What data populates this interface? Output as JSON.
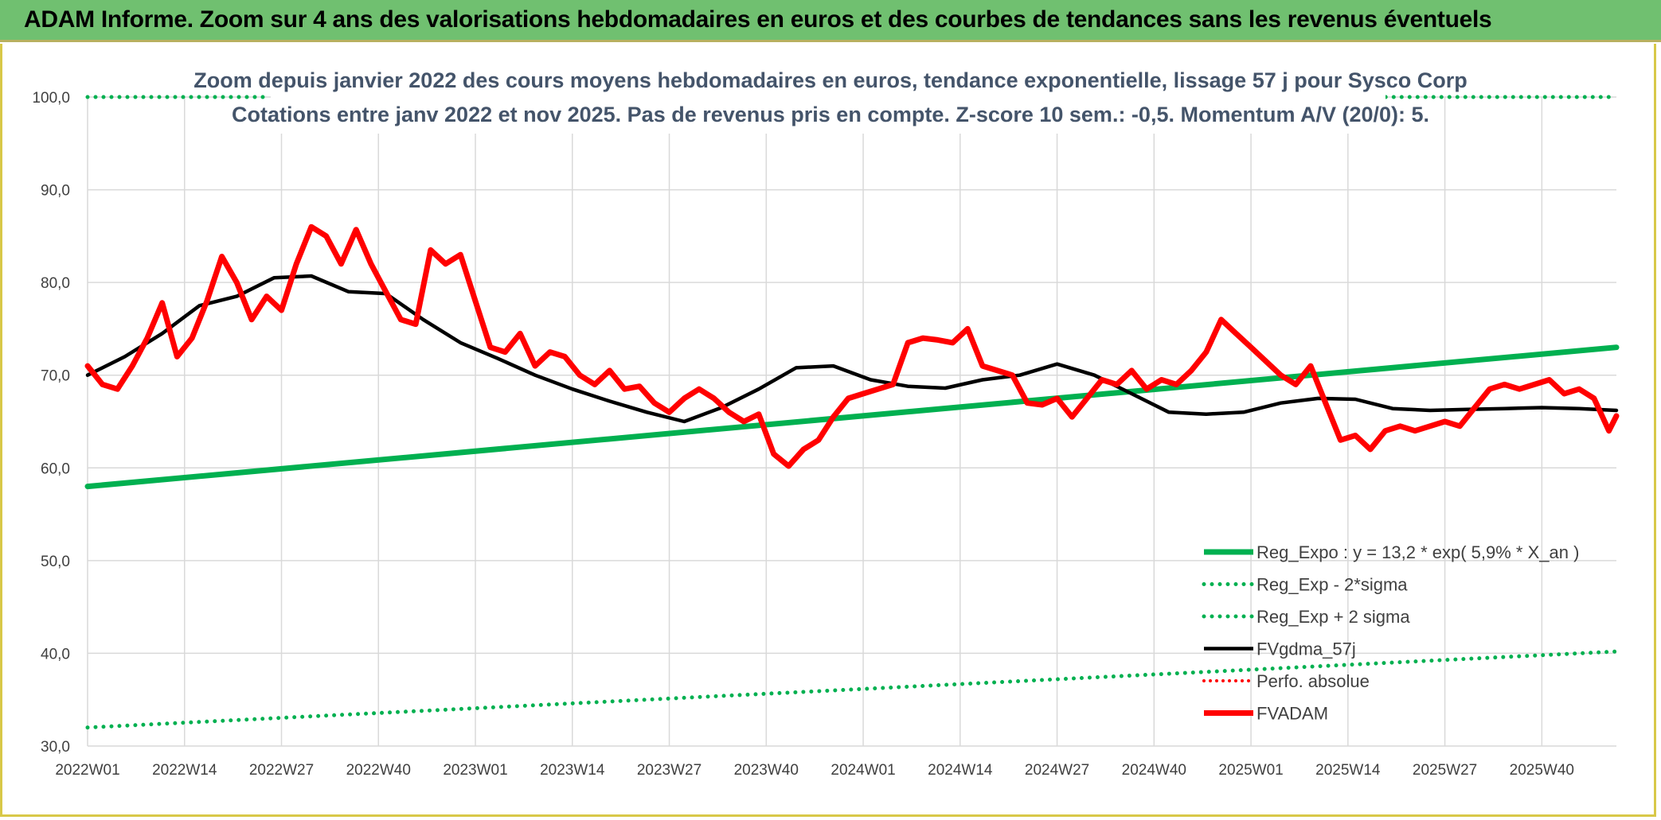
{
  "banner": {
    "title": "ADAM Informe. Zoom sur 4 ans des valorisations hebdomadaires en euros et des courbes de tendances sans les revenus éventuels"
  },
  "colors": {
    "banner": "#70c070",
    "reg_expo": "#00b050",
    "fvgdma": "#000000",
    "fvadam": "#ff0000",
    "perfo": "#ff0000",
    "grid": "#d9d9d9"
  },
  "chart_data": {
    "type": "line",
    "title_line1": "Zoom depuis janvier 2022 des cours moyens hebdomadaires en euros, tendance exponentielle, lissage 57 j pour Sysco Corp",
    "title_line2": "Cotations entre janv 2022 et nov 2025. Pas de revenus pris en compte. Z-score 10 sem.: -0,5. Momentum A/V (20/0): 5.",
    "ylim": [
      30,
      100
    ],
    "y_ticks": [
      "30,0",
      "40,0",
      "50,0",
      "60,0",
      "70,0",
      "80,0",
      "90,0",
      "100,0"
    ],
    "x_ticks": [
      "2022W01",
      "2022W14",
      "2022W27",
      "2022W40",
      "2023W01",
      "2023W14",
      "2023W27",
      "2023W40",
      "2024W01",
      "2024W14",
      "2024W27",
      "2024W40",
      "2025W01",
      "2025W14",
      "2025W27",
      "2025W40"
    ],
    "grid": true,
    "legend_position": "bottom-right",
    "x_range_weeks": [
      0,
      205
    ],
    "series": [
      {
        "name": "Reg_Expo : y = 13,2 * exp( 5,9% *  X_an )",
        "style": "solid-thick",
        "x": [
          0,
          205
        ],
        "y": [
          58.0,
          73.0
        ]
      },
      {
        "name": "Reg_Exp - 2*sigma",
        "style": "dotted",
        "x": [
          0,
          205
        ],
        "y": [
          32.0,
          40.2
        ]
      },
      {
        "name": "Reg_Exp + 2 sigma",
        "style": "dotted",
        "x": [
          0,
          24,
          173,
          205
        ],
        "y": [
          100.0,
          100.0,
          100.0,
          100.0
        ],
        "segments": [
          [
            0,
            24
          ],
          [
            173,
            205
          ]
        ]
      },
      {
        "name": "FVgdma_57j",
        "style": "solid",
        "x": [
          0,
          5,
          10,
          15,
          20,
          25,
          30,
          35,
          40,
          45,
          50,
          55,
          60,
          65,
          70,
          75,
          80,
          85,
          90,
          95,
          100,
          105,
          110,
          115,
          120,
          125,
          130,
          135,
          140,
          145,
          150,
          155,
          160,
          165,
          170,
          175,
          180,
          185,
          190,
          195,
          200,
          205
        ],
        "y": [
          70.0,
          72.0,
          74.5,
          77.5,
          78.5,
          80.5,
          80.7,
          79.0,
          78.8,
          76.0,
          73.5,
          71.8,
          70.0,
          68.5,
          67.2,
          66.0,
          65.0,
          66.5,
          68.5,
          70.8,
          71.0,
          69.5,
          68.8,
          68.6,
          69.5,
          70.0,
          71.2,
          70.0,
          68.0,
          66.0,
          65.8,
          66.0,
          67.0,
          67.5,
          67.4,
          66.4,
          66.2,
          66.3,
          66.4,
          66.5,
          66.4,
          66.2
        ]
      },
      {
        "name": "Perfo. absolue",
        "style": "dotted",
        "x": [],
        "y": []
      },
      {
        "name": "FVADAM",
        "style": "solid-thick",
        "x": [
          0,
          2,
          4,
          6,
          8,
          10,
          12,
          14,
          16,
          18,
          20,
          22,
          24,
          26,
          28,
          30,
          32,
          34,
          36,
          38,
          40,
          42,
          44,
          46,
          48,
          50,
          52,
          54,
          56,
          58,
          60,
          62,
          64,
          66,
          68,
          70,
          72,
          74,
          76,
          78,
          80,
          82,
          84,
          86,
          88,
          90,
          92,
          94,
          96,
          98,
          100,
          102,
          104,
          106,
          108,
          110,
          112,
          114,
          116,
          118,
          120,
          122,
          124,
          126,
          128,
          130,
          132,
          134,
          136,
          138,
          140,
          142,
          144,
          146,
          148,
          150,
          152,
          154,
          156,
          158,
          160,
          162,
          164,
          166,
          168,
          170,
          172,
          174,
          176,
          178,
          180,
          182,
          184,
          186,
          188,
          190,
          192,
          194,
          196,
          198,
          200,
          202,
          204,
          205
        ],
        "y": [
          71.0,
          69.0,
          68.5,
          71.0,
          74.0,
          77.8,
          72.0,
          74.0,
          78.0,
          82.8,
          80.0,
          76.0,
          78.5,
          77.0,
          82.0,
          86.0,
          85.0,
          82.0,
          85.7,
          82.0,
          79.0,
          76.0,
          75.5,
          83.5,
          82.0,
          83.0,
          78.0,
          73.0,
          72.5,
          74.5,
          71.0,
          72.5,
          72.0,
          70.0,
          69.0,
          70.5,
          68.5,
          68.8,
          67.0,
          66.0,
          67.5,
          68.5,
          67.5,
          66.0,
          65.0,
          65.8,
          61.5,
          60.2,
          62.0,
          63.0,
          65.5,
          67.5,
          68.0,
          68.5,
          69.0,
          73.5,
          74.0,
          73.8,
          73.5,
          75.0,
          71.0,
          70.5,
          70.0,
          67.0,
          66.8,
          67.5,
          65.5,
          67.5,
          69.5,
          69.0,
          70.5,
          68.5,
          69.5,
          69.0,
          70.5,
          72.5,
          76.0,
          74.5,
          73.0,
          71.5,
          70.0,
          69.0,
          71.0,
          67.0,
          63.0,
          63.5,
          62.0,
          64.0,
          64.5,
          64.0,
          64.5,
          65.0,
          64.5,
          66.5,
          68.5,
          69.0,
          68.5,
          69.0,
          69.5,
          68.0,
          68.5,
          67.5,
          64.0,
          65.6
        ]
      }
    ]
  }
}
